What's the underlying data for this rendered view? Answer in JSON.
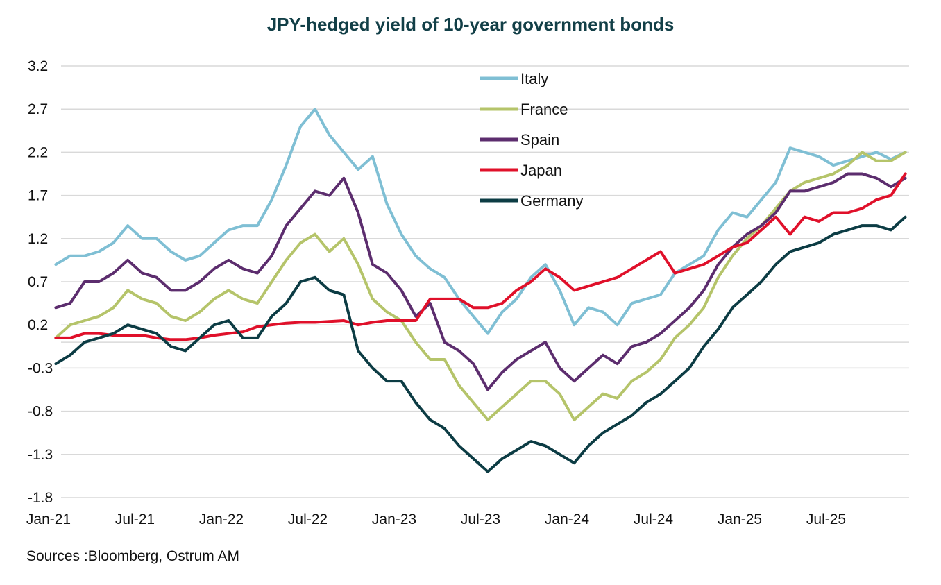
{
  "chart_data": {
    "type": "line",
    "title": "JPY-hedged yield of 10-year government bonds",
    "xlabel": "",
    "ylabel": "",
    "source": "Sources :Bloomberg, Ostrum AM",
    "ylim": [
      -1.8,
      3.2
    ],
    "yticks": [
      "3.2",
      "2.7",
      "2.2",
      "1.7",
      "1.2",
      "0.7",
      "0.2",
      "-0.3",
      "-0.8",
      "-1.3",
      "-1.8"
    ],
    "ytick_values": [
      3.2,
      2.7,
      2.2,
      1.7,
      1.2,
      0.7,
      0.2,
      -0.3,
      -0.8,
      -1.3,
      -1.8
    ],
    "xticks": [
      "Jan-21",
      "Jul-21",
      "Jan-22",
      "Jul-22",
      "Jan-23",
      "Jul-23",
      "Jan-24",
      "Jul-24",
      "Jan-25",
      "Jul-25"
    ],
    "x_start": "2021-01",
    "x_frequency": "monthly",
    "x": [
      "2021-01",
      "2021-02",
      "2021-03",
      "2021-04",
      "2021-05",
      "2021-06",
      "2021-07",
      "2021-08",
      "2021-09",
      "2021-10",
      "2021-11",
      "2021-12",
      "2022-01",
      "2022-02",
      "2022-03",
      "2022-04",
      "2022-05",
      "2022-06",
      "2022-07",
      "2022-08",
      "2022-09",
      "2022-10",
      "2022-11",
      "2022-12",
      "2023-01",
      "2023-02",
      "2023-03",
      "2023-04",
      "2023-05",
      "2023-06",
      "2023-07",
      "2023-08",
      "2023-09",
      "2023-10",
      "2023-11",
      "2023-12",
      "2024-01",
      "2024-02",
      "2024-03",
      "2024-04",
      "2024-05",
      "2024-06",
      "2024-07",
      "2024-08",
      "2024-09",
      "2024-10",
      "2024-11",
      "2024-12",
      "2025-01",
      "2025-02",
      "2025-03",
      "2025-04",
      "2025-05",
      "2025-06",
      "2025-07",
      "2025-08",
      "2025-09",
      "2025-10",
      "2025-11",
      "2025-12"
    ],
    "grid": true,
    "zero_line": true,
    "legend_position": "top-center",
    "series": [
      {
        "name": "Italy",
        "color": "#7fbfd4",
        "values": [
          0.9,
          1.0,
          1.0,
          1.05,
          1.15,
          1.35,
          1.2,
          1.2,
          1.05,
          0.95,
          1.0,
          1.15,
          1.3,
          1.35,
          1.35,
          1.65,
          2.05,
          2.5,
          2.7,
          2.4,
          2.2,
          2.0,
          2.15,
          1.6,
          1.25,
          1.0,
          0.85,
          0.75,
          0.5,
          0.3,
          0.1,
          0.35,
          0.5,
          0.75,
          0.9,
          0.6,
          0.2,
          0.4,
          0.35,
          0.2,
          0.45,
          0.5,
          0.55,
          0.8,
          0.9,
          1.0,
          1.3,
          1.5,
          1.45,
          1.65,
          1.85,
          2.25,
          2.2,
          2.15,
          2.05,
          2.1,
          2.15,
          2.2,
          2.12,
          2.2
        ]
      },
      {
        "name": "France",
        "color": "#b5c46a",
        "values": [
          0.05,
          0.2,
          0.25,
          0.3,
          0.4,
          0.6,
          0.5,
          0.45,
          0.3,
          0.25,
          0.35,
          0.5,
          0.6,
          0.5,
          0.45,
          0.7,
          0.95,
          1.15,
          1.25,
          1.05,
          1.2,
          0.9,
          0.5,
          0.35,
          0.25,
          0.0,
          -0.2,
          -0.2,
          -0.5,
          -0.7,
          -0.9,
          -0.75,
          -0.6,
          -0.45,
          -0.45,
          -0.6,
          -0.9,
          -0.75,
          -0.6,
          -0.65,
          -0.45,
          -0.35,
          -0.2,
          0.05,
          0.2,
          0.4,
          0.75,
          1.0,
          1.2,
          1.35,
          1.55,
          1.75,
          1.85,
          1.9,
          1.95,
          2.05,
          2.2,
          2.1,
          2.1,
          2.2
        ]
      },
      {
        "name": "Spain",
        "color": "#5c2d6e",
        "values": [
          0.4,
          0.45,
          0.7,
          0.7,
          0.8,
          0.95,
          0.8,
          0.75,
          0.6,
          0.6,
          0.7,
          0.85,
          0.95,
          0.85,
          0.8,
          1.0,
          1.35,
          1.55,
          1.75,
          1.7,
          1.9,
          1.5,
          0.9,
          0.8,
          0.6,
          0.3,
          0.45,
          0.0,
          -0.1,
          -0.25,
          -0.55,
          -0.35,
          -0.2,
          -0.1,
          0.0,
          -0.3,
          -0.45,
          -0.3,
          -0.15,
          -0.25,
          -0.05,
          0.0,
          0.1,
          0.25,
          0.4,
          0.6,
          0.9,
          1.1,
          1.25,
          1.35,
          1.5,
          1.75,
          1.75,
          1.8,
          1.85,
          1.95,
          1.95,
          1.9,
          1.8,
          1.9
        ]
      },
      {
        "name": "Japan",
        "color": "#e0102a",
        "values": [
          0.05,
          0.05,
          0.1,
          0.1,
          0.08,
          0.08,
          0.08,
          0.05,
          0.03,
          0.03,
          0.05,
          0.08,
          0.1,
          0.12,
          0.18,
          0.2,
          0.22,
          0.23,
          0.23,
          0.24,
          0.25,
          0.2,
          0.23,
          0.25,
          0.25,
          0.25,
          0.5,
          0.5,
          0.5,
          0.4,
          0.4,
          0.45,
          0.6,
          0.7,
          0.85,
          0.75,
          0.6,
          0.65,
          0.7,
          0.75,
          0.85,
          0.95,
          1.05,
          0.8,
          0.85,
          0.9,
          1.0,
          1.1,
          1.15,
          1.3,
          1.45,
          1.25,
          1.45,
          1.4,
          1.5,
          1.5,
          1.55,
          1.65,
          1.7,
          1.95
        ]
      },
      {
        "name": "Germany",
        "color": "#0c3c44",
        "values": [
          -0.25,
          -0.15,
          0.0,
          0.05,
          0.1,
          0.2,
          0.15,
          0.1,
          -0.05,
          -0.1,
          0.05,
          0.2,
          0.25,
          0.05,
          0.05,
          0.3,
          0.45,
          0.7,
          0.75,
          0.6,
          0.55,
          -0.1,
          -0.3,
          -0.45,
          -0.45,
          -0.7,
          -0.9,
          -1.0,
          -1.2,
          -1.35,
          -1.5,
          -1.35,
          -1.25,
          -1.15,
          -1.2,
          -1.3,
          -1.4,
          -1.2,
          -1.05,
          -0.95,
          -0.85,
          -0.7,
          -0.6,
          -0.45,
          -0.3,
          -0.05,
          0.15,
          0.4,
          0.55,
          0.7,
          0.9,
          1.05,
          1.1,
          1.15,
          1.25,
          1.3,
          1.35,
          1.35,
          1.3,
          1.45
        ]
      }
    ]
  }
}
